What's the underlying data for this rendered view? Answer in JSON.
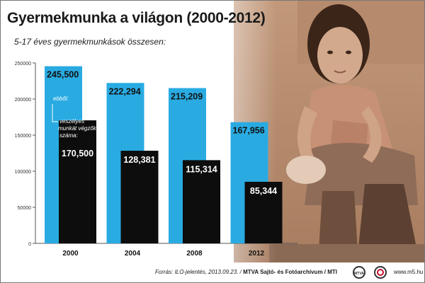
{
  "header": {
    "title": "Gyermekmunka a világon (2000-2012)",
    "subtitle": "5-17 éves gyermekmunkások összesen:"
  },
  "annotations": {
    "of_which": "ebből:",
    "hazardous_line1": "veszélyes",
    "hazardous_line2": "munkát végzők",
    "hazardous_line3": "száma:"
  },
  "footer": {
    "source_prefix": "Forrás: ILO-jelentés, 2013.09.23. / ",
    "source_credit": "MTVA Sajtó- és Fotóarchívum / MTI",
    "logo_mtva": "MTVA",
    "website": "www.m5.hu"
  },
  "colors": {
    "total_bar": "#29abe2",
    "hazardous_bar": "#0d0d0d",
    "photo_tone": "#c9a58a"
  },
  "chart_data": {
    "type": "bar",
    "title": "Gyermekmunka a világon (2000-2012)",
    "subtitle": "5-17 éves gyermekmunkások összesen:",
    "categories": [
      "2000",
      "2004",
      "2008",
      "2012"
    ],
    "series": [
      {
        "name": "5-17 éves gyermekmunkások összesen",
        "values": [
          245500,
          222294,
          215209,
          167956
        ],
        "labels": [
          "245,500",
          "222,294",
          "215,209",
          "167,956"
        ]
      },
      {
        "name": "veszélyes munkát végzők száma",
        "values": [
          170500,
          128381,
          115314,
          85344
        ],
        "labels": [
          "170,500",
          "128,381",
          "115,314",
          "85,344"
        ]
      }
    ],
    "y_ticks": [
      0,
      50000,
      100000,
      150000,
      200000,
      250000
    ],
    "ylim": [
      0,
      250000
    ],
    "xlabel": "",
    "ylabel": "",
    "grid": false,
    "legend": "none"
  }
}
